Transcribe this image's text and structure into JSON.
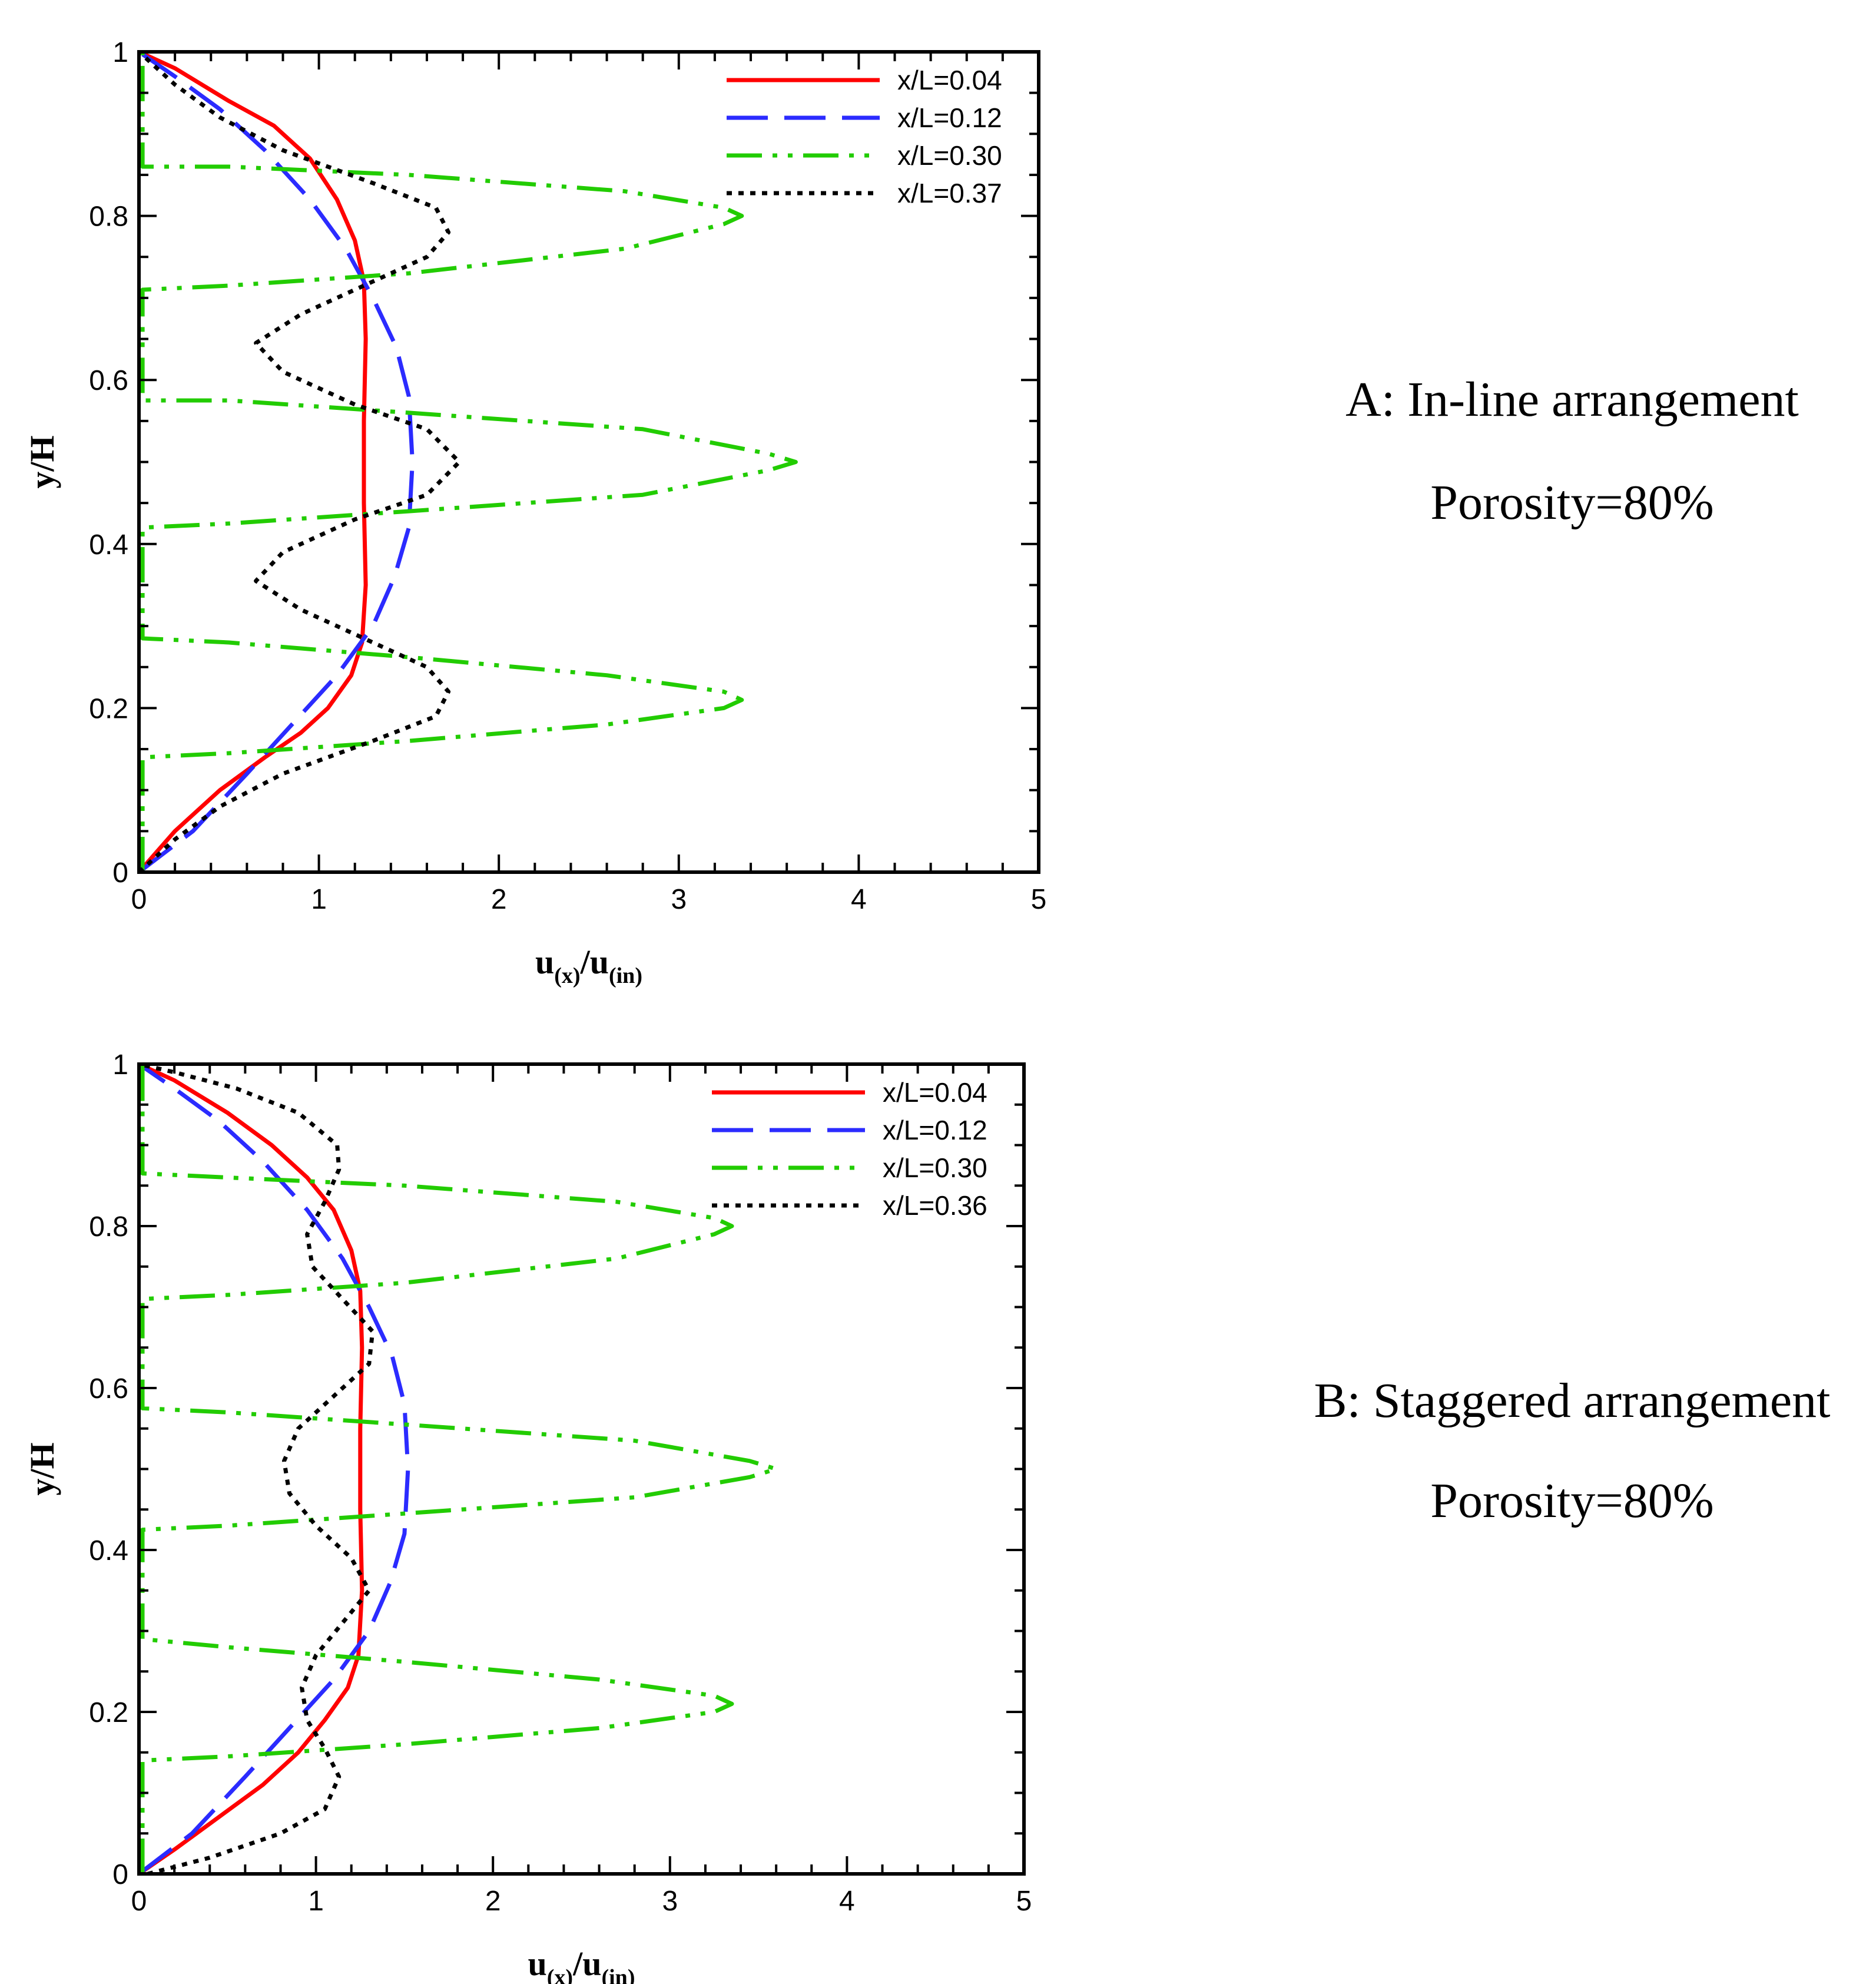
{
  "chart_data": [
    {
      "id": "A",
      "type": "line",
      "caption": "A: In-line arrangement",
      "subcaption": "Porosity=80%",
      "xlabel": {
        "main": "u",
        "sub1": "(x)",
        "sep": "/u",
        "sub2": "(in)"
      },
      "ylabel": "y/H",
      "xlim": [
        0,
        5
      ],
      "ylim": [
        0,
        1
      ],
      "xticks": [
        0,
        1,
        2,
        3,
        4,
        5
      ],
      "yticks": [
        0,
        0.2,
        0.4,
        0.6,
        0.8,
        1
      ],
      "xtick_labels": [
        "0",
        "1",
        "2",
        "3",
        "4",
        "5"
      ],
      "ytick_labels": [
        "0",
        "0.2",
        "0.4",
        "0.6",
        "0.8",
        "1"
      ],
      "legend_position": "top-right",
      "series": [
        {
          "name": "x/L=0.04",
          "color": "#ff0000",
          "dash": "solid",
          "points": [
            [
              0,
              0
            ],
            [
              0.2,
              0.05
            ],
            [
              0.45,
              0.1
            ],
            [
              0.7,
              0.14
            ],
            [
              0.9,
              0.17
            ],
            [
              1.05,
              0.2
            ],
            [
              1.18,
              0.24
            ],
            [
              1.24,
              0.28
            ],
            [
              1.26,
              0.35
            ],
            [
              1.25,
              0.45
            ],
            [
              1.25,
              0.55
            ],
            [
              1.26,
              0.65
            ],
            [
              1.25,
              0.72
            ],
            [
              1.2,
              0.77
            ],
            [
              1.1,
              0.82
            ],
            [
              0.95,
              0.87
            ],
            [
              0.75,
              0.91
            ],
            [
              0.5,
              0.94
            ],
            [
              0.2,
              0.98
            ],
            [
              0,
              1
            ]
          ]
        },
        {
          "name": "x/L=0.12",
          "color": "#2b2bff",
          "dash": "long",
          "points": [
            [
              0,
              0
            ],
            [
              0.3,
              0.05
            ],
            [
              0.6,
              0.12
            ],
            [
              0.85,
              0.18
            ],
            [
              1.1,
              0.24
            ],
            [
              1.3,
              0.3
            ],
            [
              1.42,
              0.36
            ],
            [
              1.5,
              0.42
            ],
            [
              1.52,
              0.5
            ],
            [
              1.5,
              0.58
            ],
            [
              1.43,
              0.64
            ],
            [
              1.3,
              0.7
            ],
            [
              1.15,
              0.76
            ],
            [
              0.95,
              0.82
            ],
            [
              0.7,
              0.88
            ],
            [
              0.45,
              0.93
            ],
            [
              0.2,
              0.97
            ],
            [
              0,
              1
            ]
          ]
        },
        {
          "name": "x/L=0.30",
          "color": "#22cc00",
          "dash": "dashdot",
          "points": [
            [
              0.02,
              0
            ],
            [
              0.02,
              0.14
            ],
            [
              0.5,
              0.145
            ],
            [
              1.5,
              0.16
            ],
            [
              2.6,
              0.18
            ],
            [
              3.25,
              0.2
            ],
            [
              3.35,
              0.21
            ],
            [
              3.25,
              0.22
            ],
            [
              2.6,
              0.24
            ],
            [
              1.5,
              0.262
            ],
            [
              0.5,
              0.28
            ],
            [
              0.02,
              0.285
            ],
            [
              0.02,
              0.42
            ],
            [
              0.5,
              0.425
            ],
            [
              1.5,
              0.44
            ],
            [
              2.8,
              0.46
            ],
            [
              3.5,
              0.49
            ],
            [
              3.65,
              0.5
            ],
            [
              3.5,
              0.51
            ],
            [
              2.8,
              0.54
            ],
            [
              1.5,
              0.56
            ],
            [
              0.5,
              0.575
            ],
            [
              0.02,
              0.575
            ],
            [
              0.02,
              0.71
            ],
            [
              0.5,
              0.715
            ],
            [
              1.5,
              0.73
            ],
            [
              2.7,
              0.76
            ],
            [
              3.25,
              0.79
            ],
            [
              3.35,
              0.8
            ],
            [
              3.25,
              0.81
            ],
            [
              2.7,
              0.83
            ],
            [
              1.5,
              0.85
            ],
            [
              0.5,
              0.86
            ],
            [
              0.02,
              0.86
            ],
            [
              0.02,
              1
            ]
          ]
        },
        {
          "name": "x/L=0.37",
          "color": "#000000",
          "dash": "dot",
          "points": [
            [
              0,
              0
            ],
            [
              0.2,
              0.04
            ],
            [
              0.45,
              0.08
            ],
            [
              0.8,
              0.12
            ],
            [
              1.3,
              0.16
            ],
            [
              1.65,
              0.19
            ],
            [
              1.72,
              0.22
            ],
            [
              1.6,
              0.25
            ],
            [
              1.3,
              0.28
            ],
            [
              0.9,
              0.32
            ],
            [
              0.65,
              0.355
            ],
            [
              0.8,
              0.39
            ],
            [
              1.2,
              0.43
            ],
            [
              1.6,
              0.46
            ],
            [
              1.78,
              0.5
            ],
            [
              1.6,
              0.54
            ],
            [
              1.2,
              0.57
            ],
            [
              0.8,
              0.61
            ],
            [
              0.65,
              0.645
            ],
            [
              0.9,
              0.68
            ],
            [
              1.3,
              0.72
            ],
            [
              1.6,
              0.75
            ],
            [
              1.72,
              0.78
            ],
            [
              1.65,
              0.81
            ],
            [
              1.3,
              0.84
            ],
            [
              0.8,
              0.88
            ],
            [
              0.45,
              0.92
            ],
            [
              0.2,
              0.96
            ],
            [
              0,
              1
            ]
          ]
        }
      ]
    },
    {
      "id": "B",
      "type": "line",
      "caption": "B: Staggered arrangement",
      "subcaption": "Porosity=80%",
      "xlabel": {
        "main": "u",
        "sub1": "(x)",
        "sep": "/u",
        "sub2": "(in)"
      },
      "ylabel": "y/H",
      "xlim": [
        0,
        5
      ],
      "ylim": [
        0,
        1
      ],
      "xticks": [
        0,
        1,
        2,
        3,
        4,
        5
      ],
      "yticks": [
        0,
        0.2,
        0.4,
        0.6,
        0.8,
        1
      ],
      "xtick_labels": [
        "0",
        "1",
        "2",
        "3",
        "4",
        "5"
      ],
      "ytick_labels": [
        "0",
        "0.2",
        "0.4",
        "0.6",
        "0.8",
        "1"
      ],
      "legend_position": "top-right",
      "series": [
        {
          "name": "x/L=0.04",
          "color": "#ff0000",
          "dash": "solid",
          "points": [
            [
              0,
              0
            ],
            [
              0.2,
              0.03
            ],
            [
              0.45,
              0.07
            ],
            [
              0.7,
              0.11
            ],
            [
              0.9,
              0.15
            ],
            [
              1.05,
              0.19
            ],
            [
              1.18,
              0.23
            ],
            [
              1.24,
              0.27
            ],
            [
              1.26,
              0.35
            ],
            [
              1.25,
              0.45
            ],
            [
              1.25,
              0.55
            ],
            [
              1.26,
              0.65
            ],
            [
              1.25,
              0.72
            ],
            [
              1.2,
              0.77
            ],
            [
              1.1,
              0.82
            ],
            [
              0.95,
              0.86
            ],
            [
              0.75,
              0.9
            ],
            [
              0.5,
              0.94
            ],
            [
              0.2,
              0.98
            ],
            [
              0,
              1
            ]
          ]
        },
        {
          "name": "x/L=0.12",
          "color": "#2b2bff",
          "dash": "long",
          "points": [
            [
              0,
              0
            ],
            [
              0.3,
              0.05
            ],
            [
              0.6,
              0.12
            ],
            [
              0.85,
              0.18
            ],
            [
              1.1,
              0.24
            ],
            [
              1.3,
              0.3
            ],
            [
              1.42,
              0.36
            ],
            [
              1.5,
              0.42
            ],
            [
              1.52,
              0.5
            ],
            [
              1.5,
              0.58
            ],
            [
              1.43,
              0.64
            ],
            [
              1.3,
              0.7
            ],
            [
              1.15,
              0.76
            ],
            [
              0.95,
              0.82
            ],
            [
              0.7,
              0.88
            ],
            [
              0.45,
              0.93
            ],
            [
              0.2,
              0.97
            ],
            [
              0,
              1
            ]
          ]
        },
        {
          "name": "x/L=0.30",
          "color": "#22cc00",
          "dash": "dashdot",
          "points": [
            [
              0.02,
              0
            ],
            [
              0.02,
              0.14
            ],
            [
              0.5,
              0.145
            ],
            [
              1.5,
              0.16
            ],
            [
              2.6,
              0.18
            ],
            [
              3.25,
              0.2
            ],
            [
              3.35,
              0.21
            ],
            [
              3.25,
              0.22
            ],
            [
              2.6,
              0.24
            ],
            [
              1.5,
              0.262
            ],
            [
              0.5,
              0.28
            ],
            [
              0.02,
              0.29
            ],
            [
              0.02,
              0.425
            ],
            [
              0.5,
              0.43
            ],
            [
              1.5,
              0.445
            ],
            [
              2.8,
              0.465
            ],
            [
              3.45,
              0.49
            ],
            [
              3.6,
              0.5
            ],
            [
              3.45,
              0.51
            ],
            [
              2.8,
              0.535
            ],
            [
              1.5,
              0.555
            ],
            [
              0.5,
              0.57
            ],
            [
              0.02,
              0.575
            ],
            [
              0.02,
              0.71
            ],
            [
              0.5,
              0.715
            ],
            [
              1.5,
              0.73
            ],
            [
              2.7,
              0.76
            ],
            [
              3.25,
              0.79
            ],
            [
              3.35,
              0.8
            ],
            [
              3.25,
              0.81
            ],
            [
              2.7,
              0.83
            ],
            [
              1.5,
              0.85
            ],
            [
              0.5,
              0.86
            ],
            [
              0.02,
              0.865
            ],
            [
              0.02,
              1
            ]
          ]
        },
        {
          "name": "x/L=0.36",
          "color": "#000000",
          "dash": "dot",
          "points": [
            [
              0.05,
              0
            ],
            [
              0.4,
              0.02
            ],
            [
              0.8,
              0.05
            ],
            [
              1.05,
              0.08
            ],
            [
              1.13,
              0.12
            ],
            [
              1.05,
              0.155
            ],
            [
              0.95,
              0.19
            ],
            [
              0.92,
              0.23
            ],
            [
              1.0,
              0.27
            ],
            [
              1.15,
              0.31
            ],
            [
              1.3,
              0.35
            ],
            [
              1.2,
              0.39
            ],
            [
              1.0,
              0.43
            ],
            [
              0.85,
              0.47
            ],
            [
              0.82,
              0.51
            ],
            [
              0.9,
              0.55
            ],
            [
              1.1,
              0.59
            ],
            [
              1.3,
              0.63
            ],
            [
              1.32,
              0.67
            ],
            [
              1.15,
              0.71
            ],
            [
              0.98,
              0.75
            ],
            [
              0.95,
              0.79
            ],
            [
              1.05,
              0.83
            ],
            [
              1.13,
              0.87
            ],
            [
              1.12,
              0.9
            ],
            [
              0.9,
              0.94
            ],
            [
              0.55,
              0.97
            ],
            [
              0.2,
              0.99
            ],
            [
              0,
              1
            ]
          ]
        }
      ]
    }
  ]
}
